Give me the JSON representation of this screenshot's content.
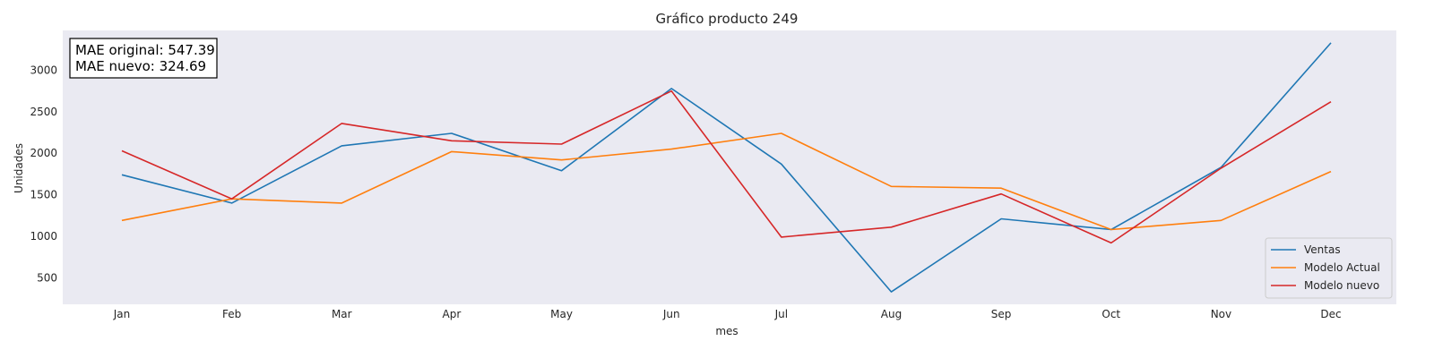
{
  "chart_data": {
    "type": "line",
    "title": "Gráfico producto 249",
    "xlabel": "mes",
    "ylabel": "Unidades",
    "categories": [
      "Jan",
      "Feb",
      "Mar",
      "Apr",
      "May",
      "Jun",
      "Jul",
      "Aug",
      "Sep",
      "Oct",
      "Nov",
      "Dec"
    ],
    "ylim": [
      180,
      3480
    ],
    "yticks": [
      500,
      1000,
      1500,
      2000,
      2500,
      3000
    ],
    "grid": false,
    "background": "#eaeaf2",
    "legend_position": "lower-right",
    "series": [
      {
        "name": "Ventas",
        "color": "#1f77b4",
        "values": [
          1740,
          1400,
          2090,
          2240,
          1790,
          2780,
          1870,
          330,
          1210,
          1080,
          1830,
          3330
        ]
      },
      {
        "name": "Modelo Actual",
        "color": "#ff7f0e",
        "values": [
          1190,
          1450,
          1400,
          2020,
          1920,
          2050,
          2240,
          1600,
          1580,
          1080,
          1190,
          1780
        ]
      },
      {
        "name": "Modelo nuevo",
        "color": "#d62728",
        "values": [
          2030,
          1450,
          2360,
          2150,
          2110,
          2750,
          990,
          1110,
          1510,
          920,
          1820,
          2620
        ]
      }
    ],
    "annotation": [
      "MAE original: 547.39",
      "MAE nuevo: 324.69"
    ]
  }
}
